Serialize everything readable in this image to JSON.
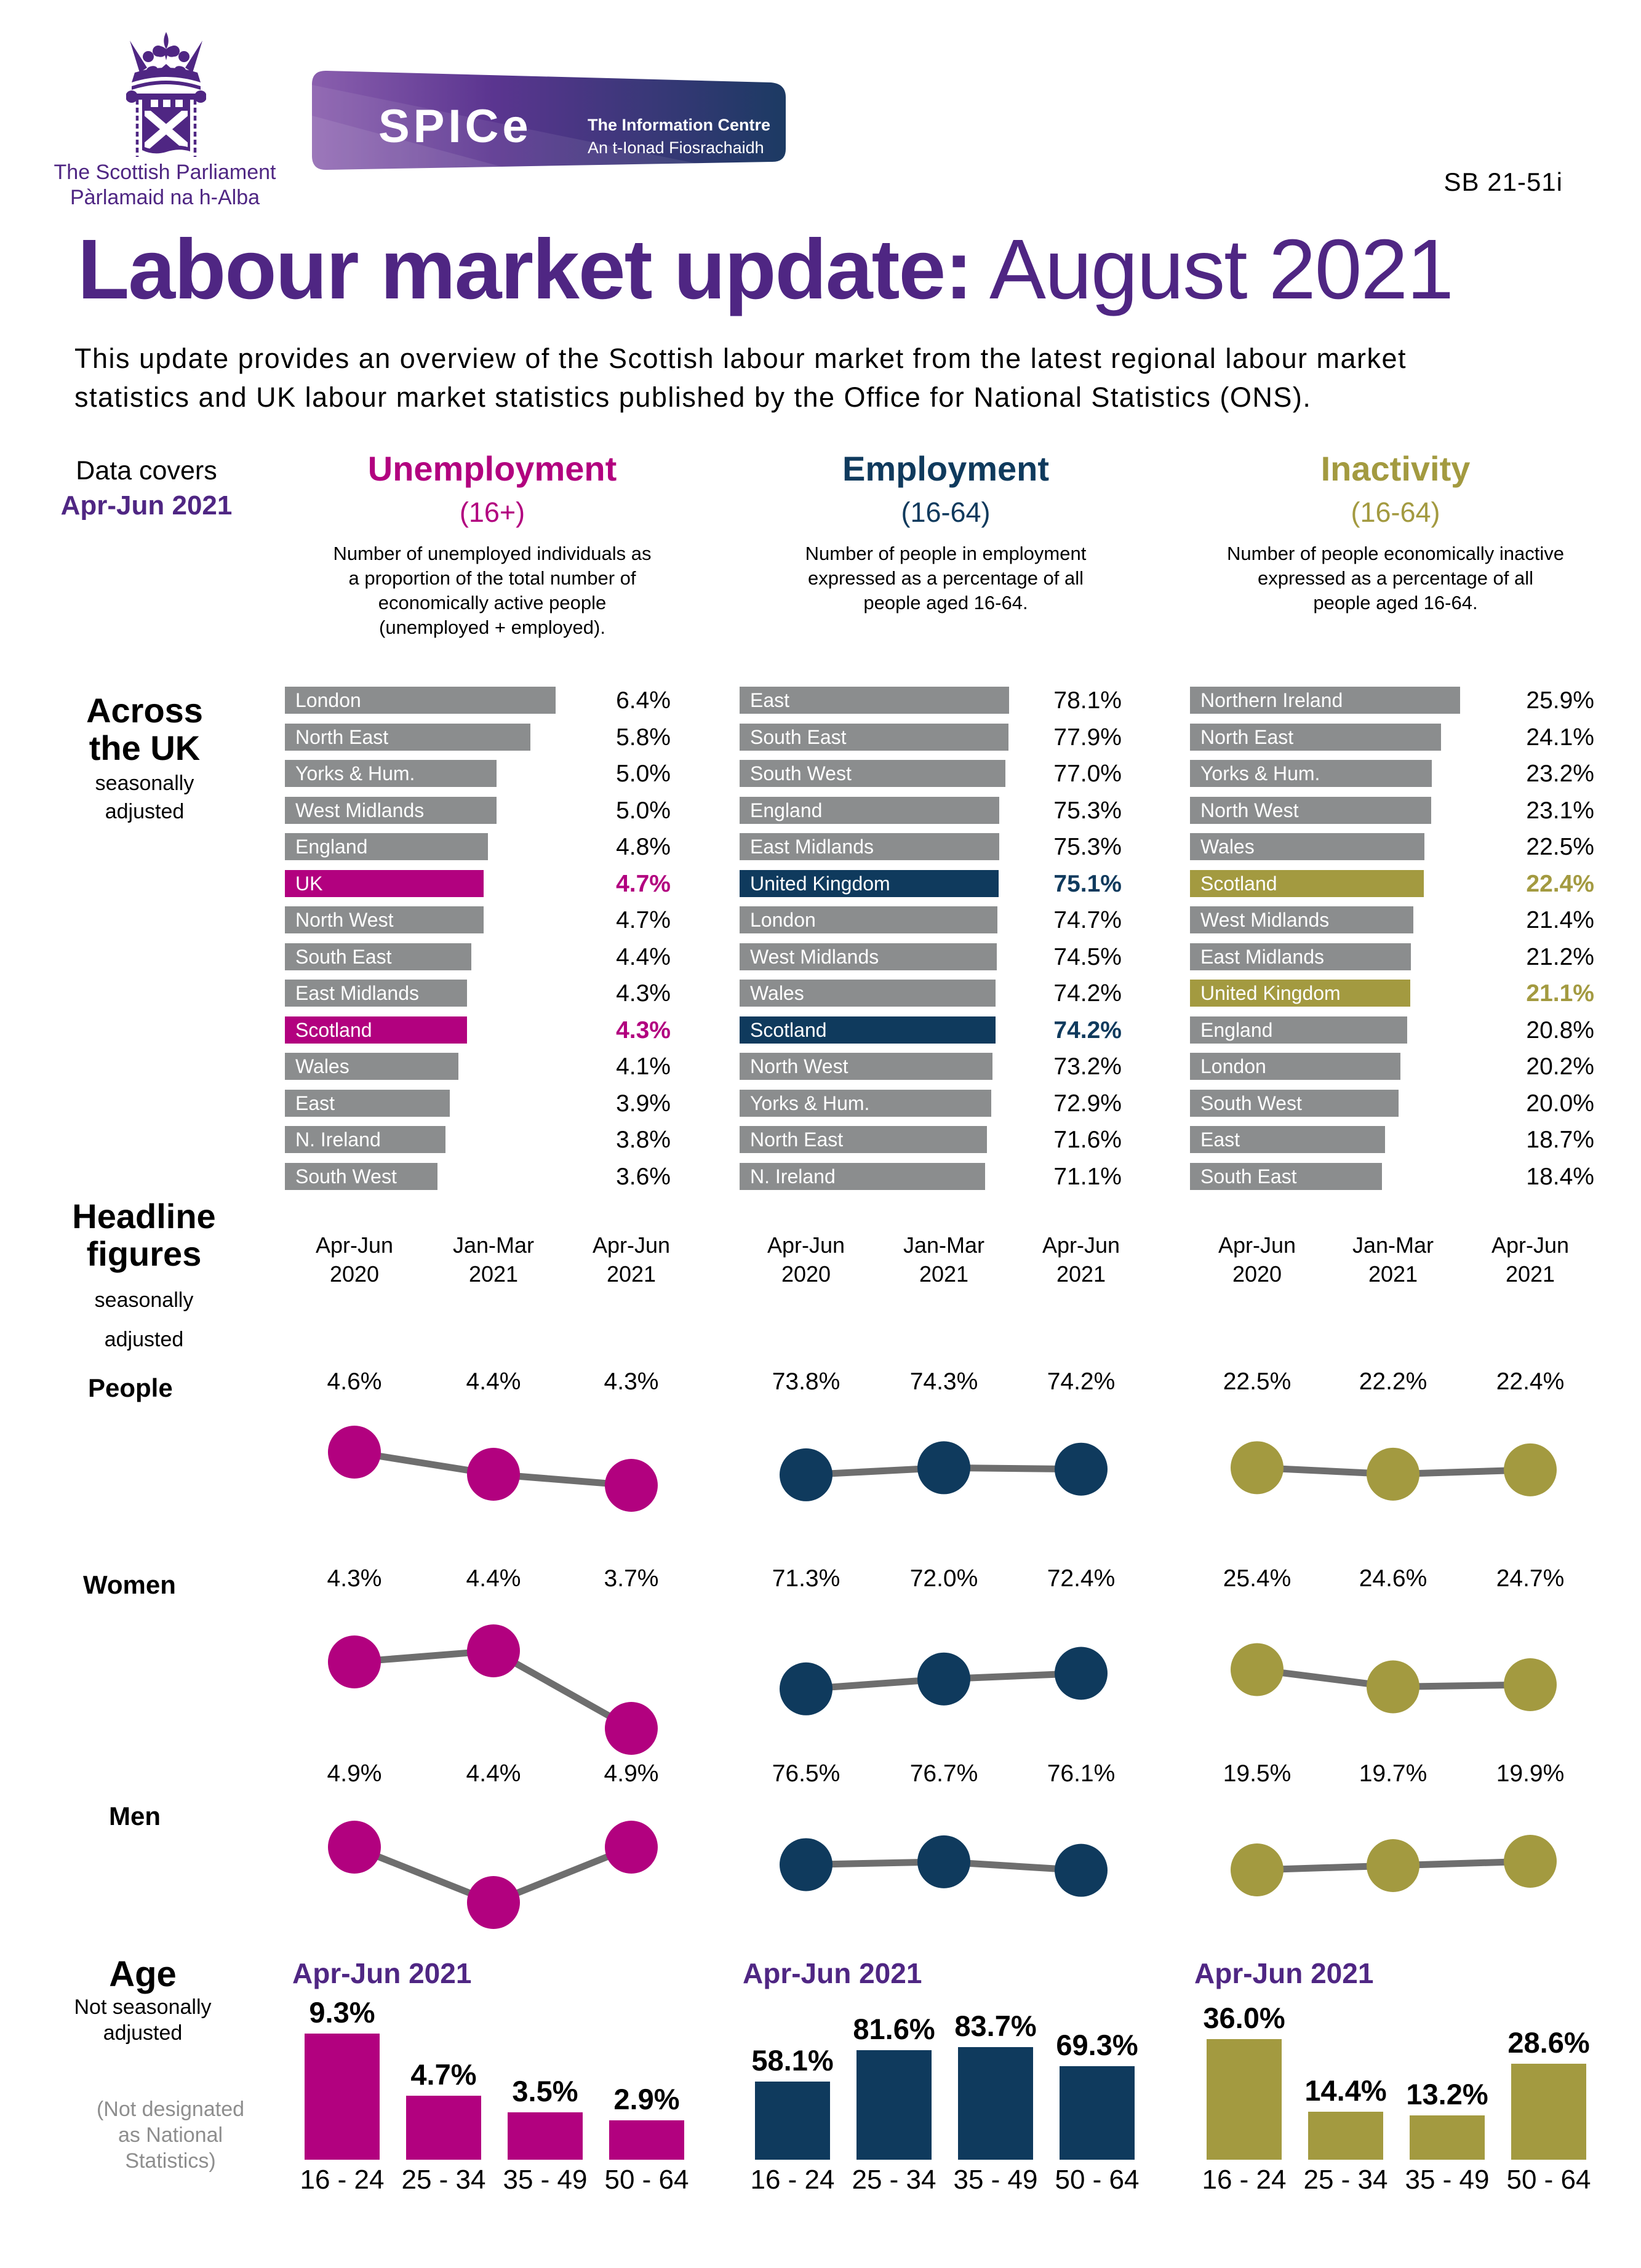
{
  "colors": {
    "purple": "#4f2683",
    "magenta": "#b2017f",
    "navy": "#0f3a5d",
    "olive": "#a39a40",
    "grey_bar": "#8b8d8e",
    "grey_line": "#6e6e6e",
    "note_grey": "#8e8e8e"
  },
  "header": {
    "logo_title": "The Scottish Parliament",
    "logo_subtitle": "Pàrlamaid na h-Alba",
    "banner_brand": "SPICe",
    "banner_name": "The Information Centre",
    "banner_gaelic": "An t-Ionad Fiosrachaidh",
    "doc_ref": "SB 21-51i",
    "title_bold": "Labour market update:",
    "title_rest": " August 2021",
    "intro_line1": "This update provides an overview of the Scottish labour market from the latest regional labour market",
    "intro_line2": "statistics and UK labour market statistics published by the Office for National Statistics (ONS)."
  },
  "sidebar": {
    "data_covers_label": "Data covers",
    "data_covers_period": "Apr-Jun 2021",
    "across_title_line1": "Across",
    "across_title_line2": "the UK",
    "across_sub_line1": "seasonally",
    "across_sub_line2": "adjusted",
    "headline_title_line1": "Headline",
    "headline_title_line2": "figures",
    "headline_sub_line1": "seasonally",
    "headline_sub_line2": "adjusted",
    "age_title": "Age",
    "age_sub_line1": "Not seasonally",
    "age_sub_line2": "adjusted",
    "age_note_line1": "(Not designated",
    "age_note_line2": "as National",
    "age_note_line3": "Statistics)"
  },
  "row_labels": {
    "people": "People",
    "women": "Women",
    "men": "Men"
  },
  "chart_data": [
    {
      "id": "unemployment_regions",
      "type": "bar",
      "orientation": "horizontal",
      "title": "Unemployment",
      "subtitle": "(16+)",
      "description_lines": [
        "Number of unemployed individuals as",
        "a proportion of the total number of",
        "economically active people",
        "(unemployed + employed)."
      ],
      "unit": "%",
      "accent": "magenta",
      "group_label": "Across the UK (seasonally adjusted)",
      "categories": [
        "London",
        "North East",
        "Yorks & Hum.",
        "West Midlands",
        "England",
        "UK",
        "North West",
        "South East",
        "East Midlands",
        "Scotland",
        "Wales",
        "East",
        "N. Ireland",
        "South West"
      ],
      "values": [
        6.4,
        5.8,
        5.0,
        5.0,
        4.8,
        4.7,
        4.7,
        4.4,
        4.3,
        4.3,
        4.1,
        3.9,
        3.8,
        3.6
      ],
      "highlighted": [
        "UK",
        "Scotland"
      ]
    },
    {
      "id": "employment_regions",
      "type": "bar",
      "orientation": "horizontal",
      "title": "Employment",
      "subtitle": "(16-64)",
      "description_lines": [
        "Number of people in employment",
        "expressed as a percentage of all",
        "people aged 16-64."
      ],
      "unit": "%",
      "accent": "navy",
      "group_label": "Across the UK (seasonally adjusted)",
      "categories": [
        "East",
        "South East",
        "South West",
        "England",
        "East Midlands",
        "United Kingdom",
        "London",
        "West Midlands",
        "Wales",
        "Scotland",
        "North West",
        "Yorks & Hum.",
        "North East",
        "N. Ireland"
      ],
      "values": [
        78.1,
        77.9,
        77.0,
        75.3,
        75.3,
        75.1,
        74.7,
        74.5,
        74.2,
        74.2,
        73.2,
        72.9,
        71.6,
        71.1
      ],
      "highlighted": [
        "United Kingdom",
        "Scotland"
      ]
    },
    {
      "id": "inactivity_regions",
      "type": "bar",
      "orientation": "horizontal",
      "title": "Inactivity",
      "subtitle": "(16-64)",
      "description_lines": [
        "Number of people economically inactive",
        "expressed as a percentage of all",
        "people aged 16-64."
      ],
      "unit": "%",
      "accent": "olive",
      "group_label": "Across the UK (seasonally adjusted)",
      "categories": [
        "Northern Ireland",
        "North East",
        "Yorks & Hum.",
        "North West",
        "Wales",
        "Scotland",
        "West Midlands",
        "East Midlands",
        "United Kingdom",
        "England",
        "London",
        "South West",
        "East",
        "South East"
      ],
      "values": [
        25.9,
        24.1,
        23.2,
        23.1,
        22.5,
        22.4,
        21.4,
        21.2,
        21.1,
        20.8,
        20.2,
        20.0,
        18.7,
        18.4
      ],
      "highlighted": [
        "Scotland",
        "United Kingdom"
      ]
    },
    {
      "id": "unemployment_headline",
      "type": "line",
      "title": "Unemployment headline figures (seasonally adjusted)",
      "x": [
        "Apr-Jun 2020",
        "Jan-Mar 2021",
        "Apr-Jun 2021"
      ],
      "unit": "%",
      "accent": "magenta",
      "series": [
        {
          "name": "People",
          "values": [
            4.6,
            4.4,
            4.3
          ]
        },
        {
          "name": "Women",
          "values": [
            4.3,
            4.4,
            3.7
          ]
        },
        {
          "name": "Men",
          "values": [
            4.9,
            4.4,
            4.9
          ]
        }
      ]
    },
    {
      "id": "employment_headline",
      "type": "line",
      "title": "Employment headline figures (seasonally adjusted)",
      "x": [
        "Apr-Jun 2020",
        "Jan-Mar 2021",
        "Apr-Jun 2021"
      ],
      "unit": "%",
      "accent": "navy",
      "series": [
        {
          "name": "People",
          "values": [
            73.8,
            74.3,
            74.2
          ]
        },
        {
          "name": "Women",
          "values": [
            71.3,
            72.0,
            72.4
          ]
        },
        {
          "name": "Men",
          "values": [
            76.5,
            76.7,
            76.1
          ]
        }
      ]
    },
    {
      "id": "inactivity_headline",
      "type": "line",
      "title": "Inactivity headline figures (seasonally adjusted)",
      "x": [
        "Apr-Jun 2020",
        "Jan-Mar 2021",
        "Apr-Jun 2021"
      ],
      "unit": "%",
      "accent": "olive",
      "series": [
        {
          "name": "People",
          "values": [
            22.5,
            22.2,
            22.4
          ]
        },
        {
          "name": "Women",
          "values": [
            25.4,
            24.6,
            24.7
          ]
        },
        {
          "name": "Men",
          "values": [
            19.5,
            19.7,
            19.9
          ]
        }
      ]
    },
    {
      "id": "unemployment_age",
      "type": "bar",
      "orientation": "vertical",
      "title": "Apr-Jun 2021",
      "subtitle": "Unemployment by age, not seasonally adjusted",
      "unit": "%",
      "accent": "magenta",
      "categories": [
        "16 - 24",
        "25 - 34",
        "35 - 49",
        "50 - 64"
      ],
      "values": [
        9.3,
        4.7,
        3.5,
        2.9
      ]
    },
    {
      "id": "employment_age",
      "type": "bar",
      "orientation": "vertical",
      "title": "Apr-Jun 2021",
      "subtitle": "Employment by age, not seasonally adjusted",
      "unit": "%",
      "accent": "navy",
      "categories": [
        "16 - 24",
        "25 - 34",
        "35 - 49",
        "50 - 64"
      ],
      "values": [
        58.1,
        81.6,
        83.7,
        69.3
      ]
    },
    {
      "id": "inactivity_age",
      "type": "bar",
      "orientation": "vertical",
      "title": "Apr-Jun 2021",
      "subtitle": "Inactivity by age, not seasonally adjusted",
      "unit": "%",
      "accent": "olive",
      "categories": [
        "16 - 24",
        "25 - 34",
        "35 - 49",
        "50 - 64"
      ],
      "values": [
        36.0,
        14.4,
        13.2,
        28.6
      ]
    }
  ]
}
